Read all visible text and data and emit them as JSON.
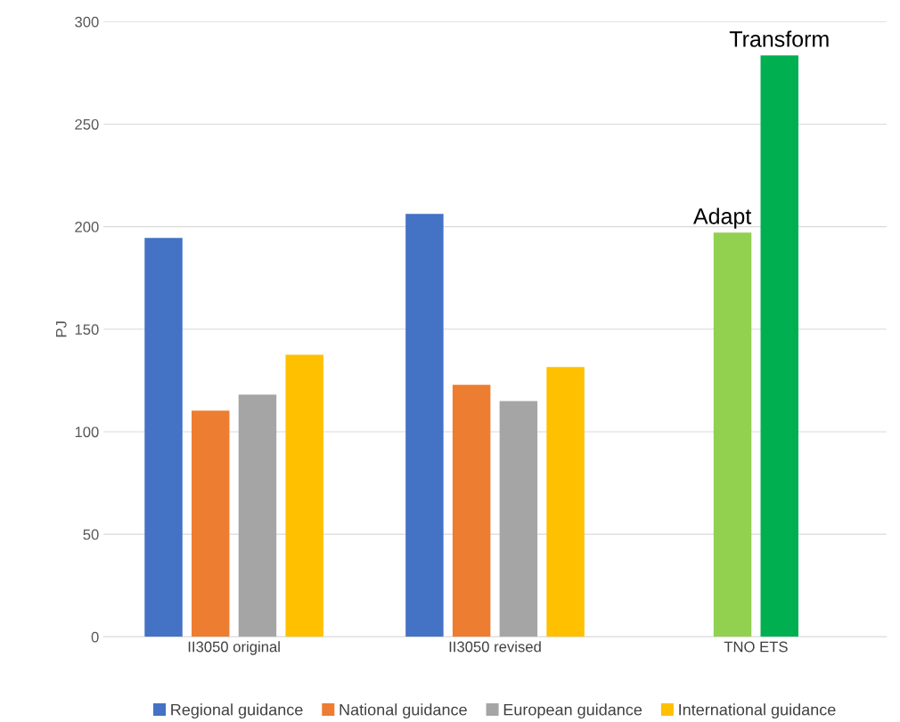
{
  "chart_data": {
    "type": "bar",
    "ylabel": "PJ",
    "categories": [
      "II3050 original",
      "II3050 revised",
      "TNO ETS"
    ],
    "series": [
      {
        "name": "Regional guidance",
        "color": "#4472c4",
        "values": [
          194.5,
          206.3,
          null
        ]
      },
      {
        "name": "National guidance",
        "color": "#ed7d31",
        "values": [
          110.3,
          122.9,
          null
        ]
      },
      {
        "name": "European guidance",
        "color": "#a5a5a5",
        "values": [
          118.1,
          115.0,
          null
        ]
      },
      {
        "name": "International guidance",
        "color": "#ffc000",
        "values": [
          137.6,
          131.6,
          null
        ]
      },
      {
        "name": "Adapt",
        "color": "#92d050",
        "values": [
          null,
          null,
          197.1
        ]
      },
      {
        "name": "Transform",
        "color": "#00b050",
        "values": [
          null,
          null,
          283.5
        ]
      }
    ],
    "ylim": [
      0,
      300
    ],
    "yticks": [
      0,
      50,
      100,
      150,
      200,
      250,
      300
    ],
    "grid": "y",
    "legend": "bottom"
  }
}
